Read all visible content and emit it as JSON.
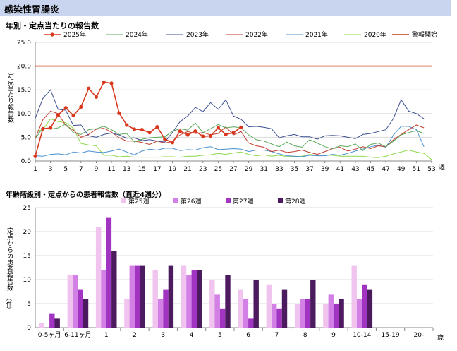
{
  "banner": {
    "title": "感染性胃腸炎"
  },
  "chart_data": [
    {
      "type": "line",
      "title": "年別・定点当たりの報告数",
      "ylabel": "定点当たり報告数",
      "xlabel": "週",
      "ylim": [
        0,
        25
      ],
      "yticks": [
        "0.0",
        "5.0",
        "10.0",
        "15.0",
        "20.0",
        "25.0"
      ],
      "xticks": [
        "1",
        "3",
        "5",
        "7",
        "9",
        "11",
        "13",
        "15",
        "17",
        "19",
        "21",
        "23",
        "25",
        "27",
        "29",
        "31",
        "33",
        "35",
        "37",
        "39",
        "41",
        "43",
        "45",
        "47",
        "49",
        "51",
        "53"
      ],
      "grid": true,
      "legend_position": "top",
      "series": [
        {
          "name": "2025年",
          "color": "#d9381e",
          "markers": true,
          "values": [
            1.0,
            6.8,
            7.0,
            9.7,
            11.2,
            9.6,
            11.4,
            15.3,
            13.5,
            16.6,
            16.4,
            10.1,
            7.6,
            6.7,
            6.6,
            6.0,
            7.2,
            4.6,
            3.9,
            6.3,
            5.5,
            6.3,
            5.2,
            5.3,
            7.0,
            5.6,
            6.0,
            7.1
          ]
        },
        {
          "name": "2024年",
          "color": "#5aa85a",
          "values": [
            4.7,
            7.0,
            6.7,
            7.0,
            7.8,
            6.0,
            5.6,
            6.6,
            6.8,
            7.3,
            6.6,
            5.6,
            5.8,
            4.0,
            4.6,
            4.9,
            5.0,
            5.1,
            6.3,
            6.8,
            6.5,
            8.0,
            6.0,
            6.8,
            7.7,
            7.0,
            7.2,
            7.0,
            5.5,
            4.5,
            4.2,
            3.6,
            3.0,
            4.0,
            3.2,
            2.9,
            4.5,
            3.8,
            3.0,
            2.6,
            3.2,
            3.0,
            3.6,
            2.2,
            3.5,
            3.8,
            3.0,
            4.2,
            5.5,
            6.0,
            6.4,
            5.8
          ]
        },
        {
          "name": "2023年",
          "color": "#3c4f8f",
          "values": [
            9.0,
            13.2,
            15.0,
            10.9,
            10.7,
            7.5,
            7.6,
            5.3,
            5.0,
            5.6,
            5.9,
            5.5,
            4.8,
            4.9,
            4.3,
            4.5,
            4.2,
            4.0,
            6.0,
            8.3,
            9.5,
            11.3,
            10.4,
            12.3,
            10.9,
            12.9,
            9.5,
            8.8,
            7.2,
            7.3,
            7.1,
            6.8,
            4.9,
            5.3,
            5.6,
            5.1,
            5.1,
            4.6,
            5.3,
            5.4,
            5.3,
            5.0,
            4.7,
            5.6,
            5.8,
            6.2,
            6.6,
            9.0,
            12.9,
            10.5,
            10.0,
            8.9
          ]
        },
        {
          "name": "2022年",
          "color": "#c0392b",
          "values": [
            4.7,
            8.7,
            10.5,
            10.0,
            7.5,
            6.5,
            5.0,
            5.6,
            6.7,
            6.9,
            6.1,
            4.9,
            4.2,
            4.2,
            3.9,
            3.5,
            4.2,
            3.8,
            4.1,
            5.5,
            6.2,
            5.8,
            6.0,
            5.5,
            5.8,
            7.2,
            5.5,
            6.2,
            3.8,
            3.2,
            2.9,
            2.0,
            2.3,
            1.8,
            2.0,
            2.3,
            1.8,
            1.4,
            2.0,
            2.6,
            2.9,
            2.1,
            2.5,
            3.0,
            2.6,
            3.2,
            3.0,
            4.5,
            5.6,
            6.6,
            7.6,
            7.0
          ]
        },
        {
          "name": "2021年",
          "color": "#4a90d0",
          "values": [
            1.1,
            1.0,
            1.4,
            1.5,
            1.3,
            1.9,
            1.7,
            2.1,
            1.9,
            1.8,
            2.1,
            2.5,
            1.9,
            1.3,
            2.1,
            2.5,
            2.3,
            2.7,
            2.7,
            2.2,
            2.4,
            2.3,
            2.8,
            3.0,
            2.4,
            2.5,
            2.6,
            2.5,
            2.0,
            2.3,
            2.3,
            2.0,
            1.5,
            1.1,
            1.0,
            0.9,
            1.2,
            1.1,
            1.1,
            1.4,
            1.2,
            1.6,
            2.1,
            2.5,
            3.0,
            3.3,
            2.9,
            5.5,
            7.3,
            7.3,
            6.6,
            3.0
          ]
        },
        {
          "name": "2020年",
          "color": "#8cd84a",
          "values": [
            6.3,
            6.6,
            8.9,
            8.3,
            8.1,
            6.9,
            3.7,
            3.4,
            3.2,
            1.2,
            1.2,
            0.9,
            1.0,
            0.8,
            0.8,
            0.8,
            0.8,
            0.9,
            0.9,
            0.8,
            1.0,
            1.0,
            1.2,
            1.3,
            1.6,
            1.4,
            1.7,
            1.9,
            1.4,
            1.1,
            1.3,
            1.0,
            1.2,
            0.9,
            0.9,
            1.0,
            1.4,
            1.2,
            1.2,
            1.2,
            1.0,
            1.0,
            1.0,
            1.0,
            0.8,
            0.7,
            1.0,
            1.5,
            1.9,
            2.3,
            1.9,
            1.6,
            0.3
          ]
        },
        {
          "name": "警報開始",
          "color": "#cc3a14",
          "threshold": 20.0
        }
      ]
    },
    {
      "type": "bar",
      "title": "年齢階級別・定点からの患者報告数（直近4週分）",
      "ylabel": "定点からの患者報告数",
      "ylabel_unit": "（件）",
      "xlabel": "歳",
      "ylim": [
        0,
        25
      ],
      "yticks": [
        "0",
        "5",
        "10",
        "15",
        "20",
        "25"
      ],
      "categories": [
        "0-5ヶ月",
        "6-11ヶ月",
        "1",
        "2",
        "3",
        "4",
        "5",
        "6",
        "7",
        "8",
        "9",
        "10-14",
        "15-19",
        "20-"
      ],
      "legend_position": "top",
      "series": [
        {
          "name": "第25週",
          "color": "#f0c4ee",
          "values": [
            1,
            11,
            21,
            6,
            12,
            13,
            10,
            8,
            9,
            5,
            5,
            13,
            0,
            0
          ]
        },
        {
          "name": "第26週",
          "color": "#d27fe6",
          "values": [
            0,
            11,
            12,
            13,
            6,
            11,
            7,
            6,
            5,
            6,
            7,
            6,
            0,
            0
          ]
        },
        {
          "name": "第27週",
          "color": "#a234c2",
          "values": [
            3,
            8,
            23,
            13,
            8,
            12,
            4,
            2,
            4,
            6,
            5,
            9,
            0,
            0
          ]
        },
        {
          "name": "第28週",
          "color": "#4c1a5e",
          "values": [
            2,
            6,
            16,
            13,
            13,
            12,
            11,
            10,
            8,
            10,
            6,
            8,
            0,
            0
          ]
        }
      ]
    }
  ]
}
